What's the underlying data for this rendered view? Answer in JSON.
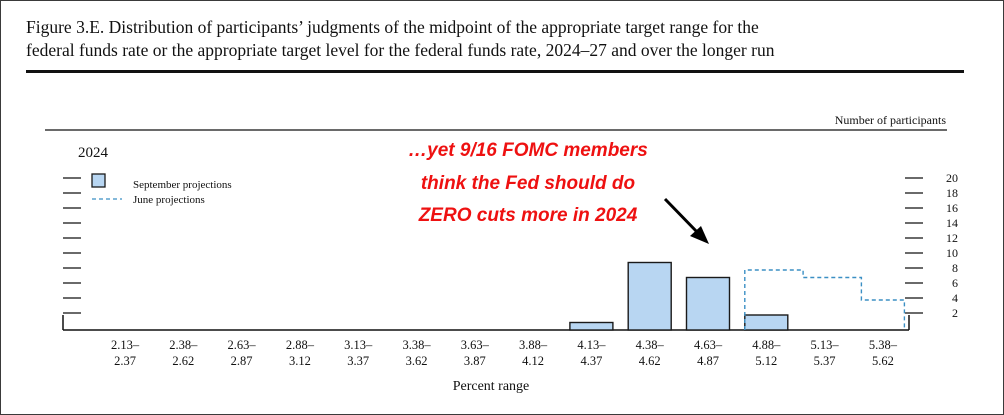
{
  "figure": {
    "title_line1": "Figure 3.E. Distribution of participants’ judgments of the midpoint of the appropriate target range for the",
    "title_line2": "federal funds rate or the appropriate target level for the federal funds rate, 2024–27 and over the longer run"
  },
  "annotation": {
    "line1": "…yet 9/16 FOMC members",
    "line2": "think the Fed should do",
    "line3": "ZERO cuts more in 2024",
    "color": "#ee1111"
  },
  "chart_data": {
    "type": "bar",
    "panel_label": "2024",
    "right_axis_title": "Number of participants",
    "xlabel": "Percent range",
    "categories": [
      [
        "2.13–",
        "2.37"
      ],
      [
        "2.38–",
        "2.62"
      ],
      [
        "2.63–",
        "2.87"
      ],
      [
        "2.88–",
        "3.12"
      ],
      [
        "3.13–",
        "3.37"
      ],
      [
        "3.38–",
        "3.62"
      ],
      [
        "3.63–",
        "3.87"
      ],
      [
        "3.88–",
        "4.12"
      ],
      [
        "4.13–",
        "4.37"
      ],
      [
        "4.38–",
        "4.62"
      ],
      [
        "4.63–",
        "4.87"
      ],
      [
        "4.88–",
        "5.12"
      ],
      [
        "5.13–",
        "5.37"
      ],
      [
        "5.38–",
        "5.62"
      ]
    ],
    "yticks": [
      "20",
      "18",
      "16",
      "14",
      "12",
      "10",
      "8",
      "6",
      "4",
      "2"
    ],
    "ylim": [
      0,
      20
    ],
    "series": [
      {
        "name": "September projections",
        "style": "filled",
        "color": "#b8d6f2",
        "edge": "#1a1a1a",
        "values": [
          0,
          0,
          0,
          0,
          0,
          0,
          0,
          0,
          1,
          9,
          7,
          2,
          0,
          0
        ]
      },
      {
        "name": "June projections",
        "style": "dashed",
        "color": "#3b8fc4",
        "values": [
          0,
          0,
          0,
          0,
          0,
          0,
          0,
          0,
          0,
          0,
          0,
          8,
          7,
          4
        ]
      }
    ],
    "legend_position": "top-left"
  }
}
